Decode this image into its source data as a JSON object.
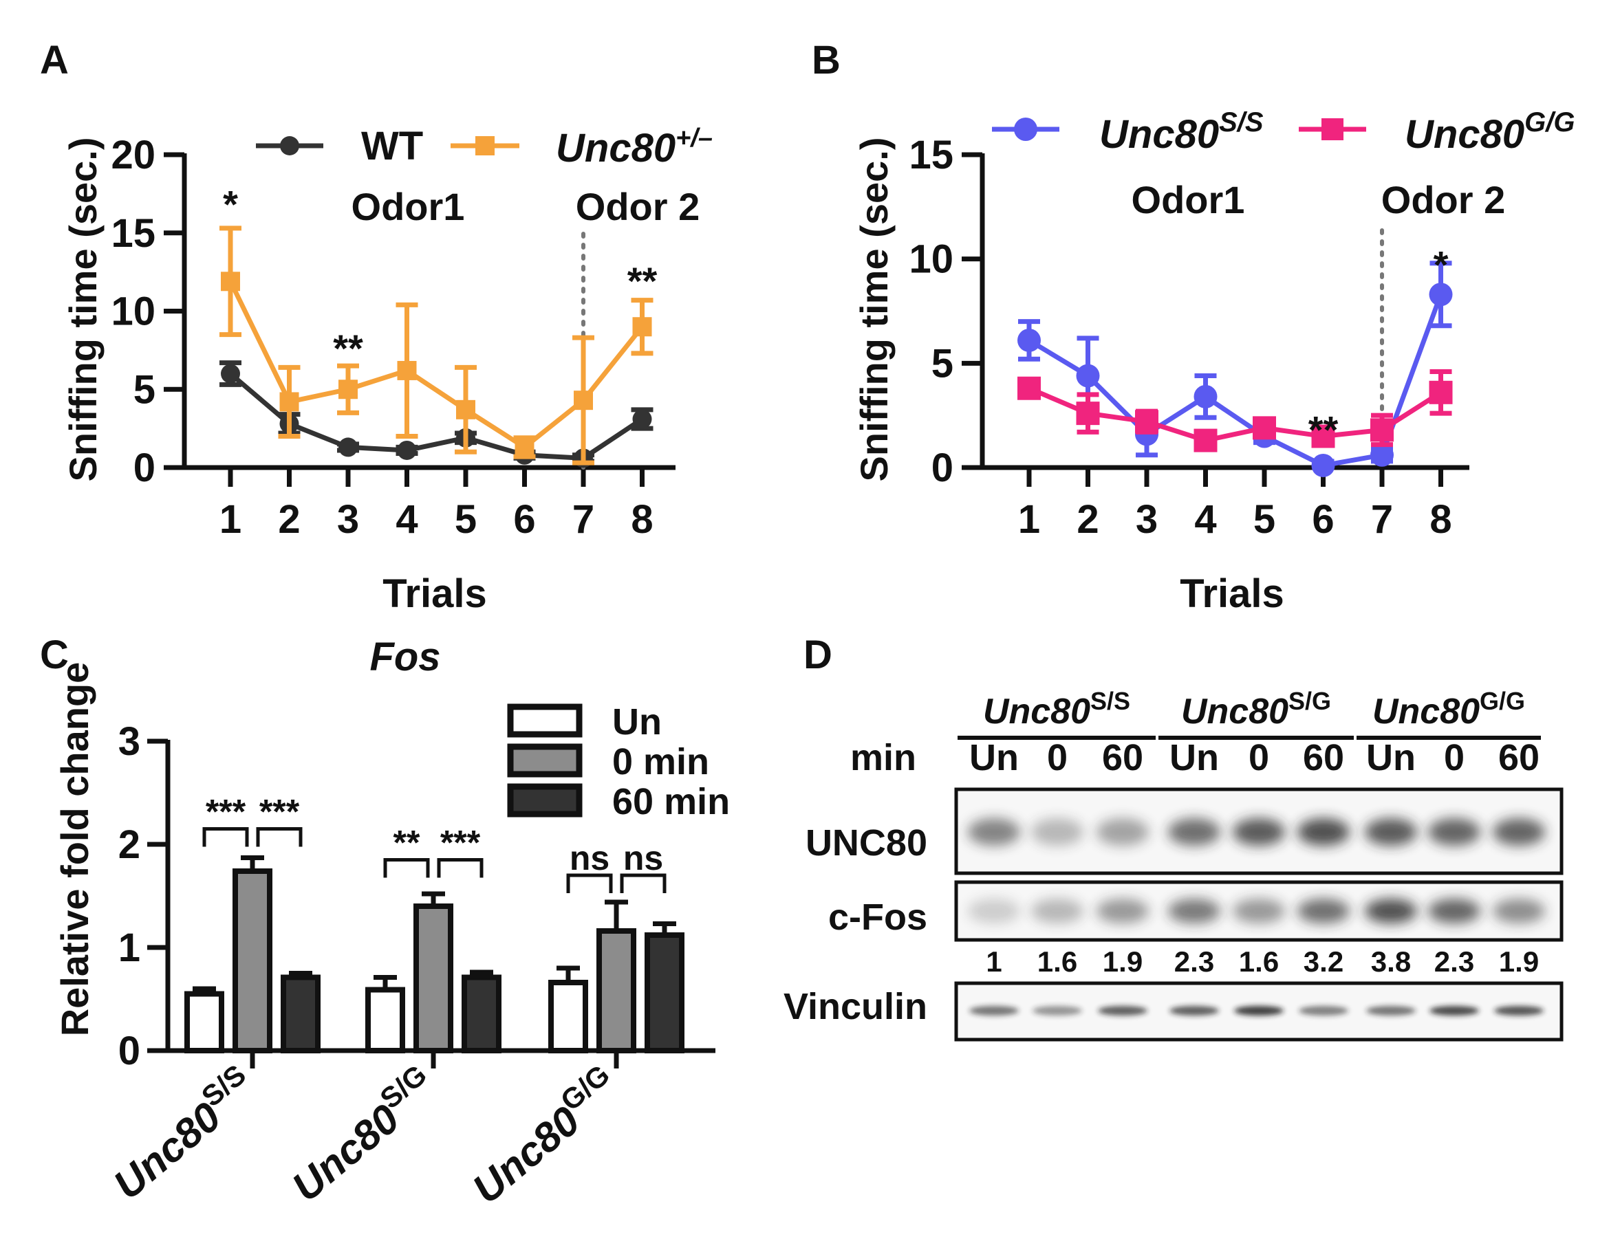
{
  "colors": {
    "wt": "#333333",
    "het": "#F5A23A",
    "ss": "#5A5AF0",
    "gg": "#F0247E",
    "bar_un": "#ffffff",
    "bar_0": "#8C8C8C",
    "bar_60": "#333333",
    "axis": "#111111"
  },
  "chart_data": [
    {
      "panel": "A",
      "type": "line",
      "ylabel": "Sniffing time (sec.)",
      "xlabel": "Trials",
      "ylim": [
        0,
        20
      ],
      "yticks": [
        0,
        5,
        10,
        15,
        20
      ],
      "x": [
        1,
        2,
        3,
        4,
        5,
        6,
        7,
        8
      ],
      "phase_labels": [
        "Odor1",
        "Odor 2"
      ],
      "divider_after_trial": 7,
      "legend": [
        {
          "name": "WT",
          "sup": ""
        },
        {
          "name": "Unc80",
          "sup": "+/–"
        }
      ],
      "series": [
        {
          "name": "WT",
          "values": [
            6.0,
            2.8,
            1.3,
            1.1,
            1.9,
            0.8,
            0.6,
            3.1
          ],
          "err": [
            0.7,
            0.6,
            0.2,
            0.2,
            0.3,
            0.2,
            0.2,
            0.6
          ]
        },
        {
          "name": "Unc80+/–",
          "values": [
            11.9,
            4.2,
            5.0,
            6.2,
            3.7,
            1.3,
            4.3,
            9.0
          ],
          "err": [
            3.4,
            2.2,
            1.5,
            4.2,
            2.7,
            0.6,
            4.0,
            1.7
          ]
        }
      ],
      "annotations": [
        {
          "x": 1,
          "y": 17.2,
          "text": "*"
        },
        {
          "x": 3,
          "y": 8.0,
          "text": "**"
        },
        {
          "x": 8,
          "y": 12.3,
          "text": "**"
        }
      ]
    },
    {
      "panel": "B",
      "type": "line",
      "ylabel": "Sniffing time (sec.)",
      "xlabel": "Trials",
      "ylim": [
        0,
        15
      ],
      "yticks": [
        0,
        5,
        10,
        15
      ],
      "x": [
        1,
        2,
        3,
        4,
        5,
        6,
        7,
        8
      ],
      "phase_labels": [
        "Odor1",
        "Odor 2"
      ],
      "divider_after_trial": 7,
      "legend": [
        {
          "name": "Unc80",
          "sup": "S/S"
        },
        {
          "name": "Unc80",
          "sup": "G/G"
        }
      ],
      "series": [
        {
          "name": "Unc80S/S",
          "values": [
            6.1,
            4.4,
            1.6,
            3.4,
            1.5,
            0.1,
            0.6,
            8.3
          ],
          "err": [
            0.9,
            1.8,
            1.0,
            1.0,
            0.3,
            0.2,
            0.3,
            1.5
          ]
        },
        {
          "name": "Unc80G/G",
          "values": [
            3.8,
            2.6,
            2.2,
            1.3,
            1.9,
            1.5,
            1.8,
            3.6
          ],
          "err": [
            0.4,
            0.9,
            0.5,
            0.3,
            0.3,
            0.3,
            0.7,
            1.0
          ]
        }
      ],
      "annotations": [
        {
          "x": 8,
          "y": 10.0,
          "text": "*"
        },
        {
          "x": 6,
          "y": 2.1,
          "text": "**"
        }
      ]
    },
    {
      "panel": "C",
      "type": "bar",
      "title": "Fos",
      "ylabel": "Relative fold change",
      "ylim": [
        0,
        3
      ],
      "yticks": [
        0,
        1,
        2,
        3
      ],
      "categories": [
        {
          "name": "Unc80",
          "sup": "S/S"
        },
        {
          "name": "Unc80",
          "sup": "S/G"
        },
        {
          "name": "Unc80",
          "sup": "G/G"
        }
      ],
      "legend": [
        "Un",
        "0 min",
        "60 min"
      ],
      "series": [
        {
          "name": "Un",
          "values": [
            0.55,
            0.59,
            0.66
          ],
          "err": [
            0.05,
            0.12,
            0.14
          ]
        },
        {
          "name": "0 min",
          "values": [
            1.74,
            1.4,
            1.16
          ],
          "err": [
            0.13,
            0.12,
            0.28
          ]
        },
        {
          "name": "60 min",
          "values": [
            0.71,
            0.71,
            1.12
          ],
          "err": [
            0.04,
            0.05,
            0.11
          ]
        }
      ],
      "significance": [
        {
          "group": 0,
          "from": 0,
          "to": 1,
          "text": "***",
          "y": 2.15
        },
        {
          "group": 0,
          "from": 1,
          "to": 2,
          "text": "***",
          "y": 2.15
        },
        {
          "group": 1,
          "from": 0,
          "to": 1,
          "text": "**",
          "y": 1.85
        },
        {
          "group": 1,
          "from": 1,
          "to": 2,
          "text": "***",
          "y": 1.85
        },
        {
          "group": 2,
          "from": 0,
          "to": 1,
          "text": "ns",
          "y": 1.7
        },
        {
          "group": 2,
          "from": 1,
          "to": 2,
          "text": "ns",
          "y": 1.7
        }
      ]
    }
  ],
  "panels": {
    "A": "A",
    "B": "B",
    "C": "C",
    "D": "D"
  },
  "blot": {
    "genotypes": [
      {
        "name": "Unc80",
        "sup": "S/S"
      },
      {
        "name": "Unc80",
        "sup": "S/G"
      },
      {
        "name": "Unc80",
        "sup": "G/G"
      }
    ],
    "min_label": "min",
    "lanes": [
      "Un",
      "0",
      "60",
      "Un",
      "0",
      "60",
      "Un",
      "0",
      "60"
    ],
    "rows": [
      "UNC80",
      "c-Fos",
      "Vinculin"
    ],
    "quant": [
      "1",
      "1.6",
      "1.9",
      "2.3",
      "1.6",
      "3.2",
      "3.8",
      "2.3",
      "1.9"
    ],
    "unc80_intensity": [
      0.55,
      0.3,
      0.4,
      0.65,
      0.75,
      0.8,
      0.75,
      0.7,
      0.7
    ],
    "cfos_intensity": [
      0.2,
      0.3,
      0.45,
      0.6,
      0.45,
      0.65,
      0.8,
      0.7,
      0.5
    ],
    "vinculin_intensity": [
      0.6,
      0.45,
      0.7,
      0.7,
      0.85,
      0.55,
      0.6,
      0.8,
      0.75
    ]
  }
}
